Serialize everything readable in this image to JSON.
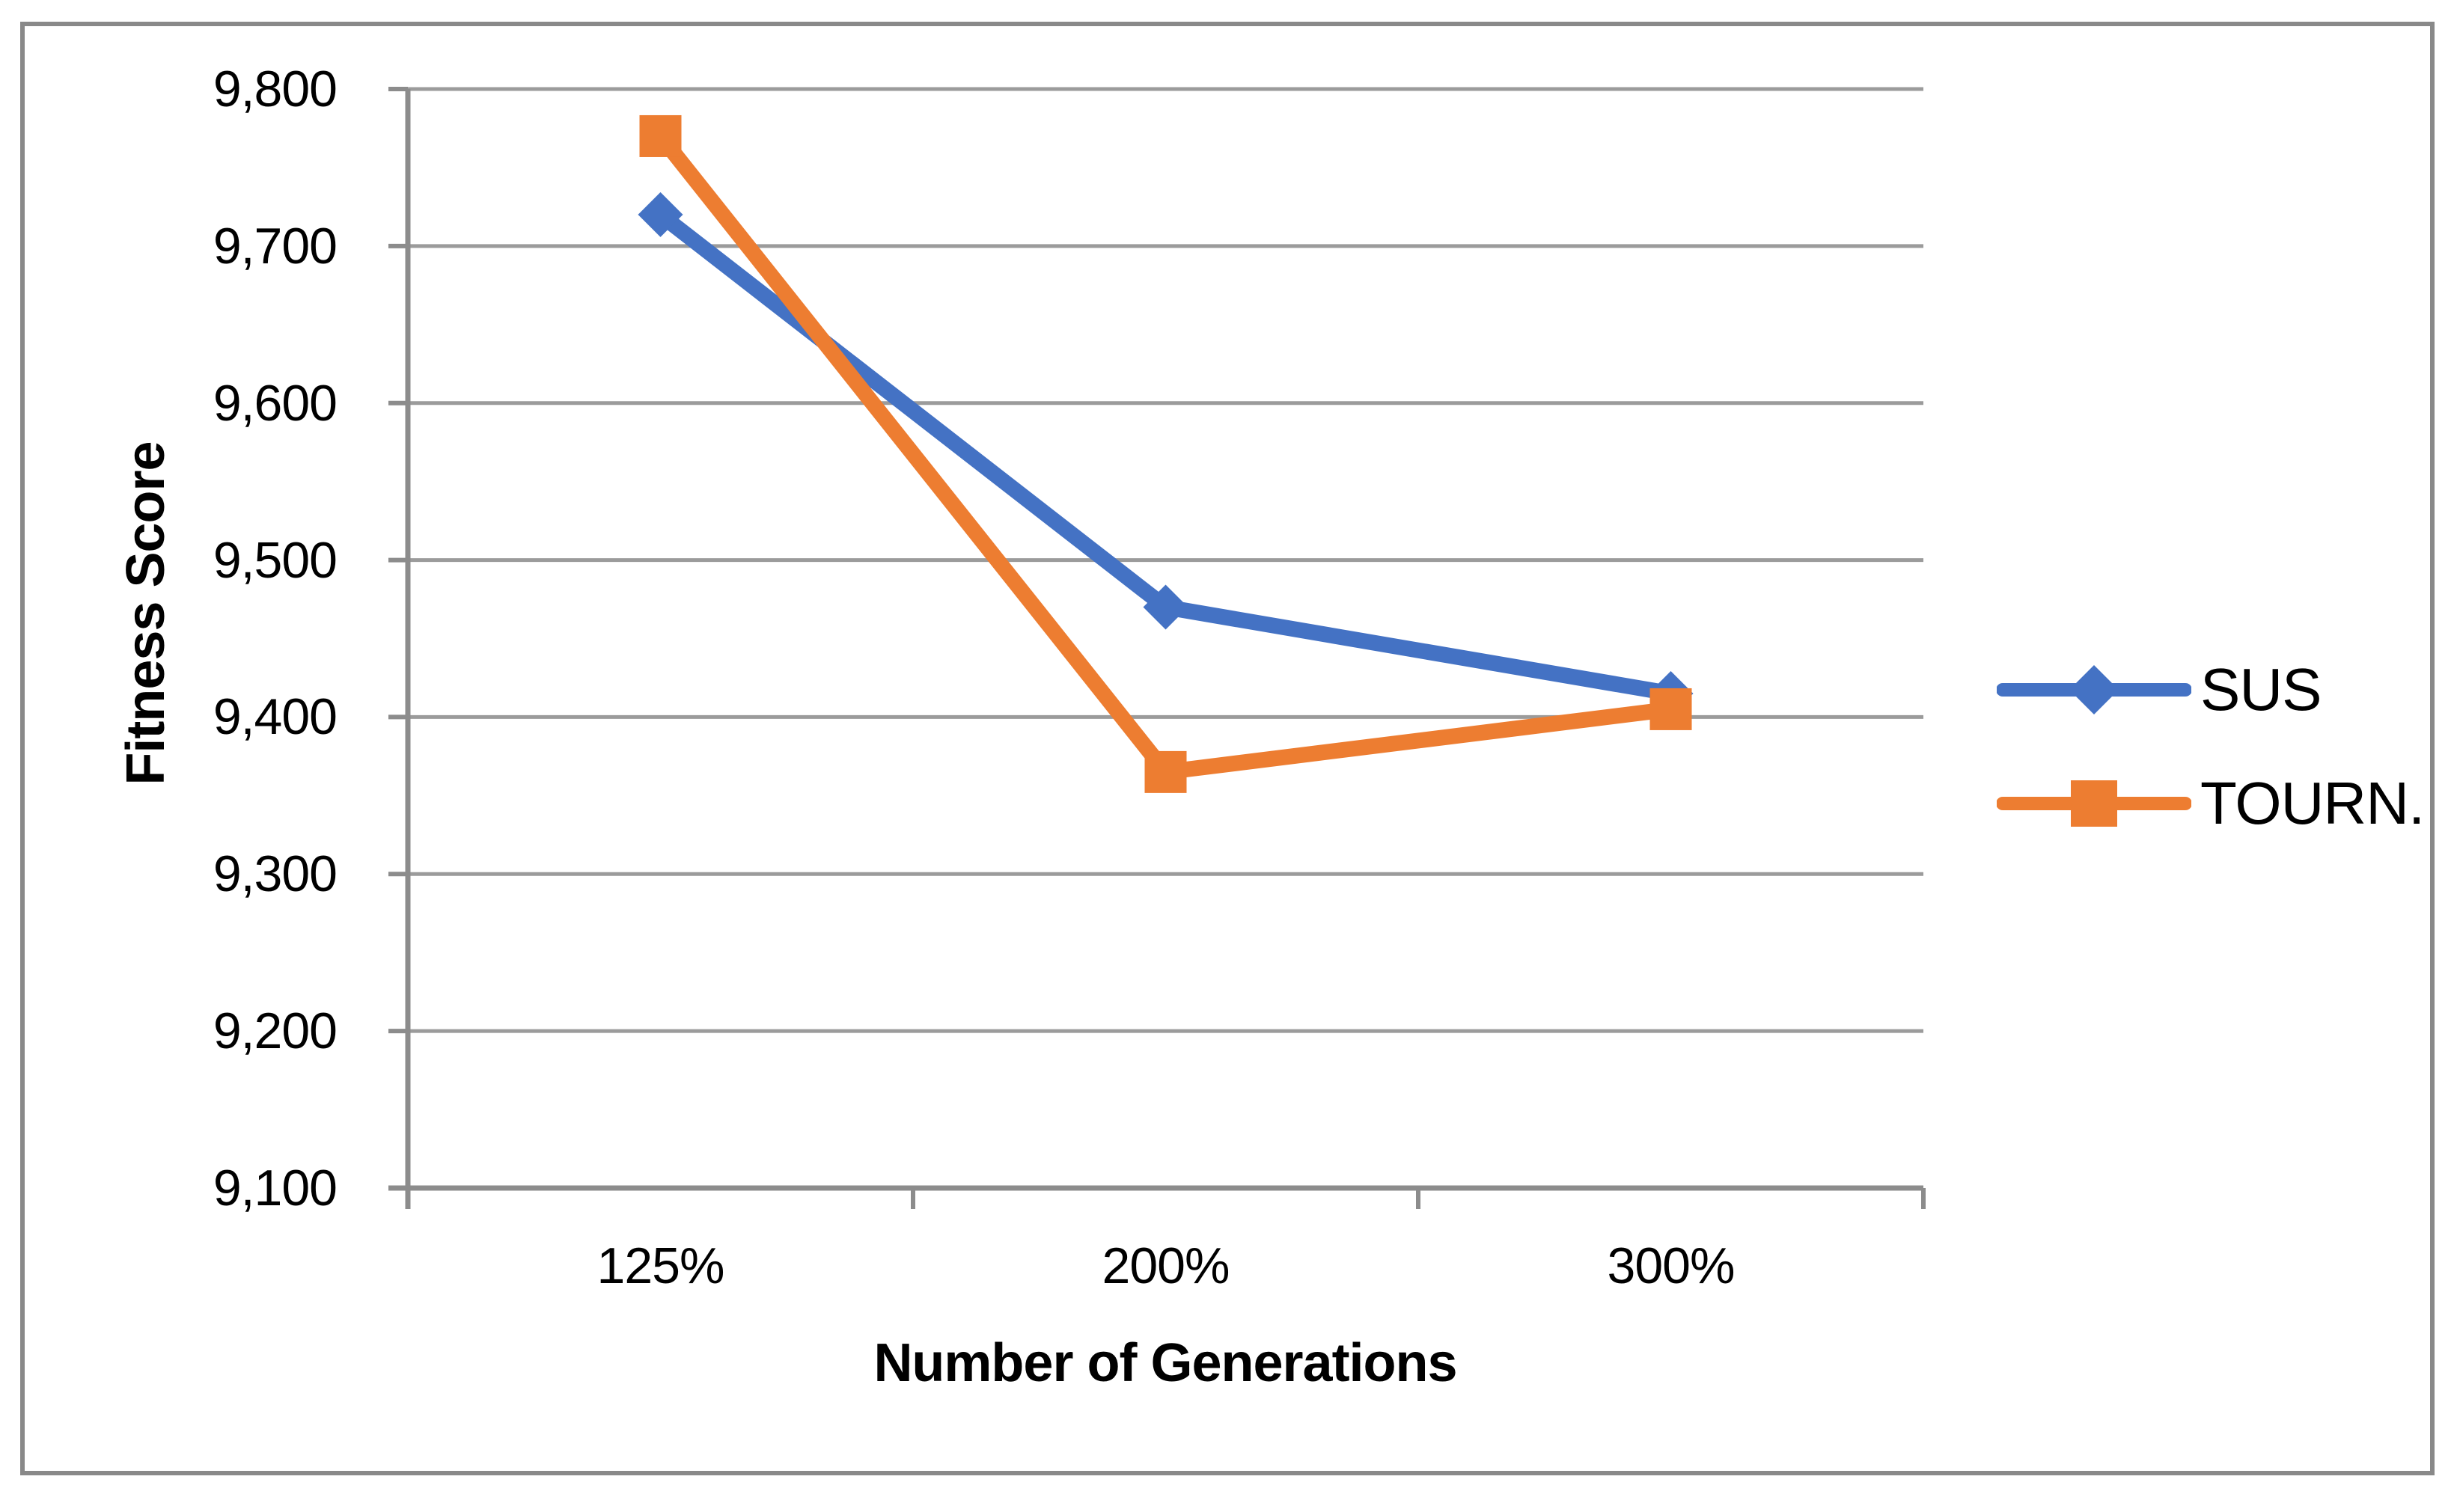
{
  "chart_data": {
    "type": "line",
    "title": "",
    "xlabel": "Number of Generations",
    "ylabel": "Fitness Score",
    "categories": [
      "125%",
      "200%",
      "300%"
    ],
    "series": [
      {
        "name": "SUS",
        "marker": "diamond",
        "color": "#4472C4",
        "values": [
          9720,
          9470,
          9415
        ]
      },
      {
        "name": "TOURN.",
        "marker": "square",
        "color": "#ED7D31",
        "values": [
          9770,
          9365,
          9405
        ]
      }
    ],
    "y_axis": {
      "min": 9100,
      "max": 9800,
      "step": 100,
      "tick_labels": [
        "9,100",
        "9,200",
        "9,300",
        "9,400",
        "9,500",
        "9,600",
        "9,700",
        "9,800"
      ]
    },
    "x_axis": {
      "tick_labels": [
        "125%",
        "200%",
        "300%"
      ]
    },
    "grid": true,
    "legend_position": "right",
    "colors": {
      "gridline": "#9B9B9B",
      "axis": "#8C8C8C",
      "border": "#898989",
      "text": "#000000"
    }
  }
}
